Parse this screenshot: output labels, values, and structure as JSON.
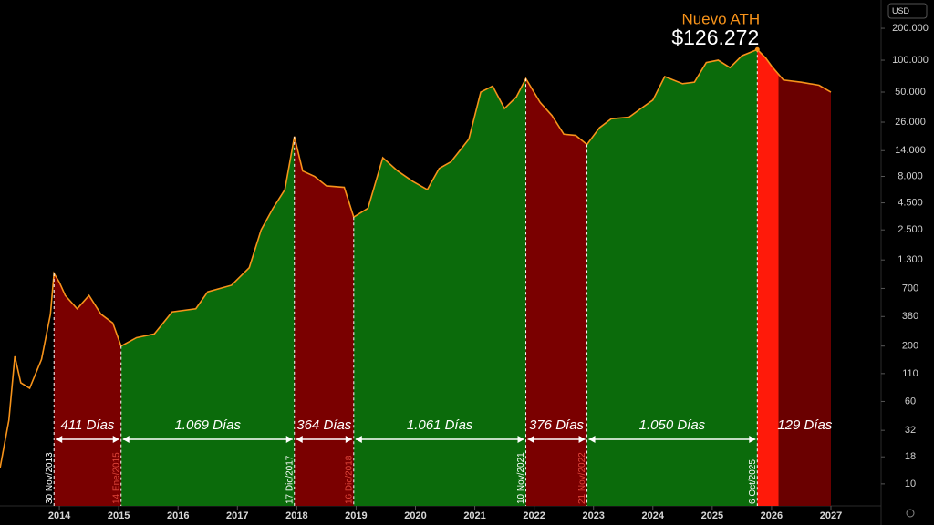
{
  "chart_data": {
    "type": "line",
    "currency": "USD",
    "log_scale": true,
    "line_color": "#f7931a",
    "x": [
      2013.0,
      2013.15,
      2013.25,
      2013.35,
      2013.5,
      2013.7,
      2013.85,
      2013.91,
      2014.0,
      2014.1,
      2014.3,
      2014.5,
      2014.7,
      2014.9,
      2015.04,
      2015.3,
      2015.6,
      2015.9,
      2016.3,
      2016.5,
      2016.9,
      2017.2,
      2017.4,
      2017.6,
      2017.8,
      2017.96,
      2018.1,
      2018.3,
      2018.5,
      2018.8,
      2018.96,
      2019.2,
      2019.45,
      2019.7,
      2019.95,
      2020.2,
      2020.4,
      2020.6,
      2020.9,
      2021.1,
      2021.3,
      2021.5,
      2021.7,
      2021.86,
      2022.1,
      2022.3,
      2022.5,
      2022.7,
      2022.89,
      2023.1,
      2023.3,
      2023.6,
      2023.8,
      2024.0,
      2024.2,
      2024.5,
      2024.7,
      2024.9,
      2025.1,
      2025.3,
      2025.5,
      2025.76,
      2025.9,
      2026.0,
      2026.2,
      2026.5,
      2026.8,
      2027.0
    ],
    "values": [
      14,
      40,
      160,
      90,
      80,
      150,
      400,
      970,
      800,
      600,
      450,
      600,
      400,
      330,
      200,
      240,
      260,
      420,
      450,
      650,
      750,
      1100,
      2500,
      4000,
      6000,
      19000,
      9000,
      8000,
      6500,
      6300,
      3300,
      4000,
      12000,
      9000,
      7200,
      6000,
      9500,
      11000,
      18000,
      50000,
      57000,
      35000,
      45000,
      67000,
      40000,
      30000,
      20000,
      19500,
      16000,
      23000,
      28000,
      29000,
      35000,
      42000,
      70000,
      60000,
      62000,
      95000,
      100000,
      85000,
      110000,
      126272,
      105000,
      88000,
      65000,
      62000,
      58000,
      50000
    ],
    "xlim": [
      2013.0,
      2027.83
    ],
    "xticks": [
      2014,
      2015,
      2016,
      2017,
      2018,
      2019,
      2020,
      2021,
      2022,
      2023,
      2024,
      2025,
      2026,
      2027
    ],
    "ylim": [
      6.2,
      370000
    ],
    "yticks": [
      {
        "value": 200000,
        "label": "200.000"
      },
      {
        "value": 100000,
        "label": "100.000"
      },
      {
        "value": 50000,
        "label": "50.000"
      },
      {
        "value": 26000,
        "label": "26.000"
      },
      {
        "value": 14000,
        "label": "14.000"
      },
      {
        "value": 8000,
        "label": "8.000"
      },
      {
        "value": 4500,
        "label": "4.500"
      },
      {
        "value": 2500,
        "label": "2.500"
      },
      {
        "value": 1300,
        "label": "1.300"
      },
      700,
      380,
      200,
      110,
      60,
      32,
      18,
      10
    ],
    "regions": [
      {
        "start": 2013.91,
        "end": 2015.04,
        "color": "#7a0000",
        "label": "411 Días",
        "arrow": true
      },
      {
        "start": 2015.04,
        "end": 2017.96,
        "color": "#0b6b0b",
        "label": "1.069 Días",
        "arrow": true
      },
      {
        "start": 2017.96,
        "end": 2018.96,
        "color": "#7a0000",
        "label": "364 Días",
        "arrow": true
      },
      {
        "start": 2018.96,
        "end": 2021.86,
        "color": "#0b6b0b",
        "label": "1.061 Días",
        "arrow": true
      },
      {
        "start": 2021.86,
        "end": 2022.89,
        "color": "#7a0000",
        "label": "376 Días",
        "arrow": true
      },
      {
        "start": 2022.89,
        "end": 2025.76,
        "color": "#0b6b0b",
        "label": "1.050 Días",
        "arrow": true
      },
      {
        "start": 2025.76,
        "end": 2026.12,
        "color": "#ff1a0a"
      },
      {
        "start": 2026.12,
        "end": 2027.0,
        "color": "#6a0000",
        "label": "129 Días",
        "arrow": false
      }
    ],
    "boundaries": [
      {
        "x": 2013.91,
        "label": "30 Nov/2013",
        "color": "#ffffff"
      },
      {
        "x": 2015.04,
        "label": "14 Ene/2015",
        "color": "#e0453a"
      },
      {
        "x": 2017.96,
        "label": "17 Dic/2017",
        "color": "#ffffff"
      },
      {
        "x": 2018.96,
        "label": "16 Dic/2018",
        "color": "#e0453a"
      },
      {
        "x": 2021.86,
        "label": "10 Nov/2021",
        "color": "#ffffff"
      },
      {
        "x": 2022.89,
        "label": "21 Nov/2022",
        "color": "#e0453a"
      },
      {
        "x": 2025.76,
        "label": "6 Oct/2025",
        "color": "#ffffff"
      }
    ],
    "ath": {
      "x": 2025.76,
      "value": 126272,
      "title": "Nuevo ATH",
      "label": "$126.272"
    }
  }
}
